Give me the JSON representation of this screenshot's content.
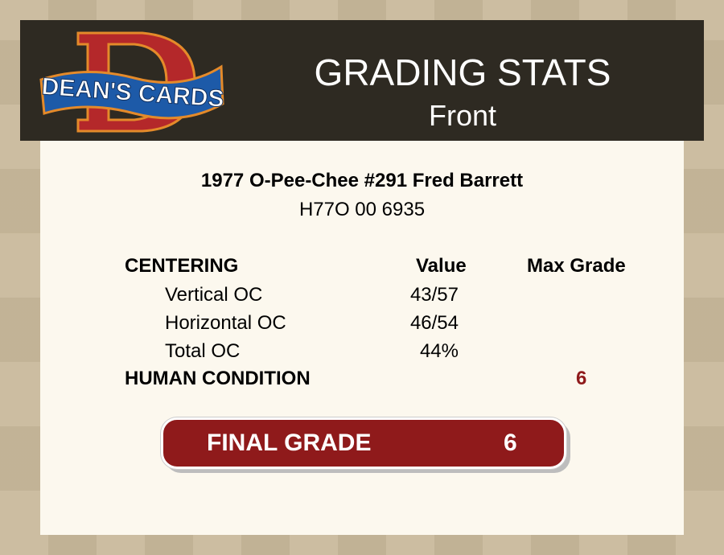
{
  "header": {
    "logo_text": "DEAN'S CARDS",
    "title": "GRADING STATS",
    "subtitle": "Front"
  },
  "card": {
    "title": "1977 O-Pee-Chee #291 Fred Barrett",
    "id": "H77O 00 6935"
  },
  "table": {
    "section": "CENTERING",
    "col_value": "Value",
    "col_max": "Max Grade",
    "rows": [
      {
        "label": "Vertical OC",
        "value": "43/57"
      },
      {
        "label": "Horizontal OC",
        "value": "46/54"
      },
      {
        "label": "Total OC",
        "value": "44%"
      }
    ],
    "human_condition": {
      "label": "HUMAN CONDITION",
      "max_grade": "6"
    }
  },
  "final": {
    "label": "FINAL GRADE",
    "value": "6"
  },
  "colors": {
    "header_bg": "#2e2a22",
    "accent_red": "#8f1a1b",
    "panel_bg": "#fcf8ee"
  }
}
